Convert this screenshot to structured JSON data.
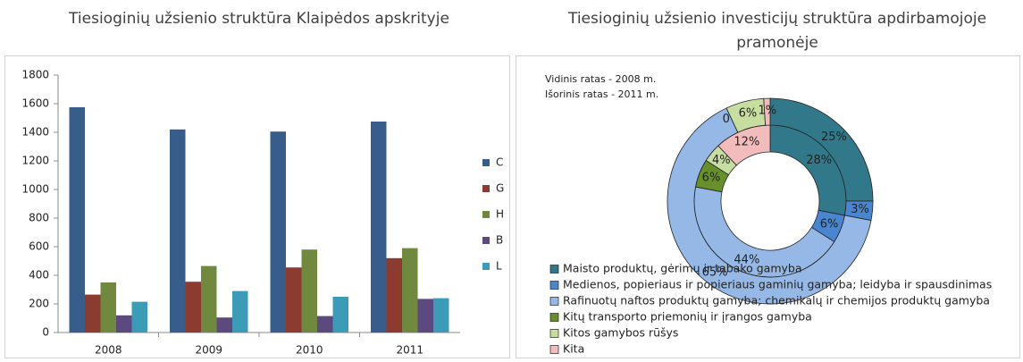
{
  "chart_data": [
    {
      "type": "bar",
      "title": "Tiesioginių užsienio struktūra Klaipėdos apskrityje",
      "categories": [
        "2008",
        "2009",
        "2010",
        "2011"
      ],
      "series": [
        {
          "name": "C",
          "color": "#385d8a",
          "values": [
            1575,
            1420,
            1405,
            1475
          ]
        },
        {
          "name": "G",
          "color": "#8c3b30",
          "values": [
            265,
            355,
            455,
            520
          ]
        },
        {
          "name": "H",
          "color": "#71893f",
          "values": [
            350,
            465,
            580,
            590
          ]
        },
        {
          "name": "B",
          "color": "#5c4a7f",
          "values": [
            120,
            105,
            115,
            235
          ]
        },
        {
          "name": "L",
          "color": "#3c9cb8",
          "values": [
            215,
            290,
            250,
            240
          ]
        }
      ],
      "ylim": [
        0,
        1800
      ],
      "yticks": [
        0,
        200,
        400,
        600,
        800,
        1000,
        1200,
        1400,
        1600,
        1800
      ],
      "legend": "right",
      "grid": false
    },
    {
      "type": "donut",
      "title": "Tiesioginių užsienio investicijų struktūra apdirbamojoje pramonėje",
      "annotations": [
        "Vidinis ratas - 2008 m.",
        "Išorinis ratas - 2011 m."
      ],
      "categories": [
        "Maisto produktų, gėrimų ir tabako gamyba",
        "Medienos, popieriaus ir popieriaus gaminių gamyba; leidyba ir spausdinimas",
        "Rafinuotų naftos produktų gamyba; chemikalų ir chemijos produktų gamyba",
        "Kitų transporto priemonių ir įrangos gamyba",
        "Kitos gamybos rūšys",
        "Kita"
      ],
      "colors": [
        "#31788a",
        "#4a86d0",
        "#95b8e6",
        "#678f2c",
        "#c8dea0",
        "#f2bcbc"
      ],
      "series": [
        {
          "values": [
            28,
            6,
            44,
            6,
            4,
            12
          ],
          "value_labels": [
            "28%",
            "6%",
            "44%",
            "6%",
            "4%",
            "12%"
          ]
        },
        {
          "values": [
            25,
            3,
            65,
            0,
            6,
            1
          ],
          "value_labels": [
            "25%",
            "3%",
            "65%",
            "0%",
            "6%",
            "1%"
          ]
        }
      ],
      "legend": "bottom"
    }
  ]
}
